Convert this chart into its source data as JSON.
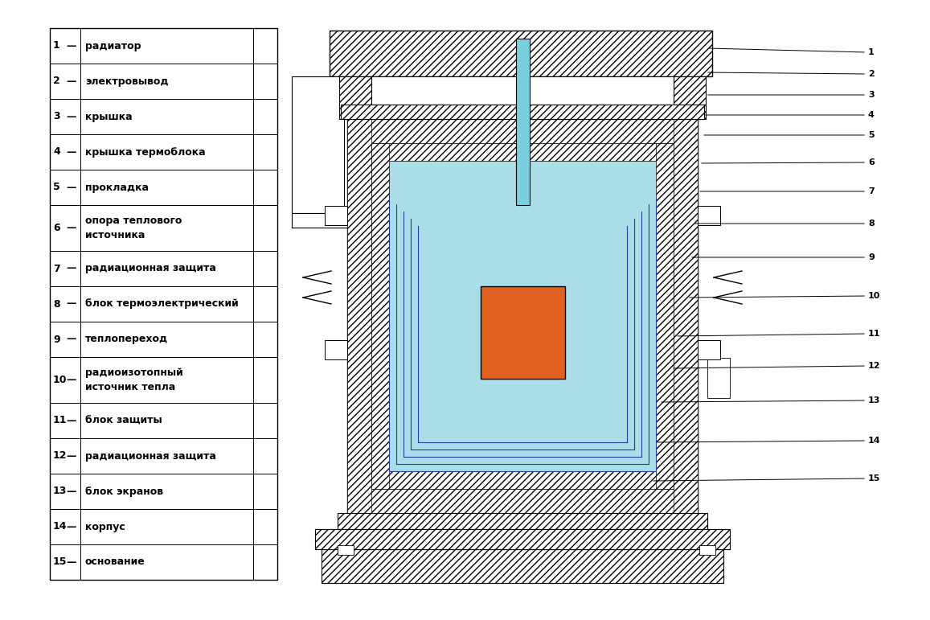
{
  "table_items": [
    {
      "num": "1",
      "text": "радиатор",
      "two_line": false
    },
    {
      "num": "2",
      "text": "электровывод",
      "two_line": false
    },
    {
      "num": "3",
      "text": "крышка",
      "two_line": false
    },
    {
      "num": "4",
      "text": "крышка термоблока",
      "two_line": false
    },
    {
      "num": "5",
      "text": "прокладка",
      "two_line": false
    },
    {
      "num": "6",
      "text": "опора теплового\nисточника",
      "two_line": true
    },
    {
      "num": "7",
      "text": "радиационная защита",
      "two_line": false
    },
    {
      "num": "8",
      "text": "блок термоэлектрический",
      "two_line": false
    },
    {
      "num": "9",
      "text": "теплопереход",
      "two_line": false
    },
    {
      "num": "10",
      "text": "радиоизотопный\nисточник тепла",
      "two_line": true
    },
    {
      "num": "11",
      "text": "блок защиты",
      "two_line": false
    },
    {
      "num": "12",
      "text": "радиационная защита",
      "two_line": false
    },
    {
      "num": "13",
      "text": "блок экранов",
      "two_line": false
    },
    {
      "num": "14",
      "text": "корпус",
      "two_line": false
    },
    {
      "num": "15",
      "text": "основание",
      "two_line": false
    }
  ],
  "white": "#ffffff",
  "black": "#000000",
  "cyan": "#7acfdf",
  "light_cyan": "#aadde8",
  "orange": "#e06020",
  "purple": "#7050a0",
  "blue_line": "#2040a0"
}
